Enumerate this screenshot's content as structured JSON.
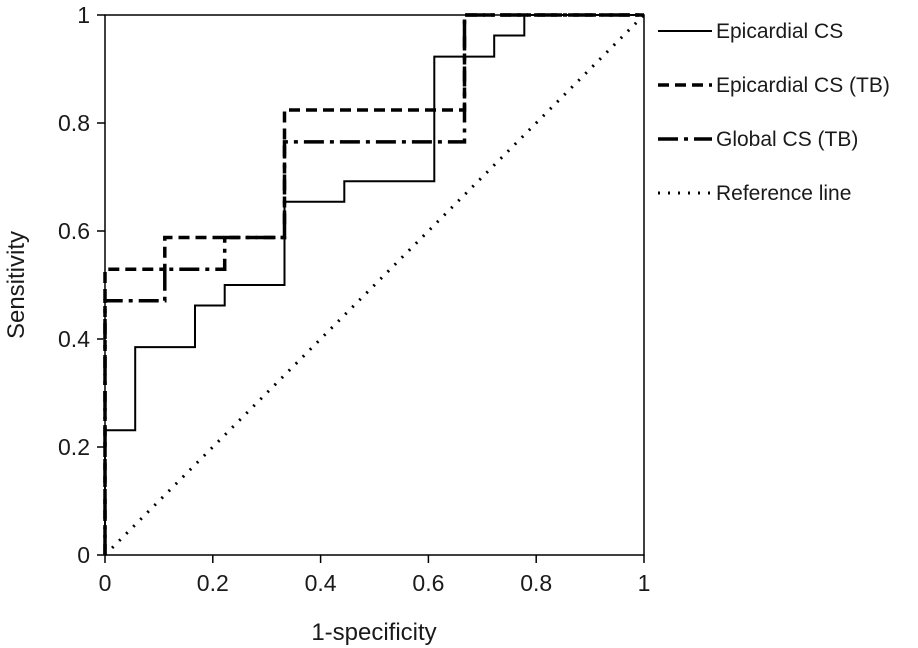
{
  "chart_data": {
    "type": "line",
    "xlabel": "1-specificity",
    "ylabel": "Sensitivity",
    "xlim": [
      0,
      1
    ],
    "ylim": [
      0,
      1
    ],
    "xticks": [
      "0",
      "0.2",
      "0.4",
      "0.6",
      "0.8",
      "1"
    ],
    "yticks": [
      "0",
      "0.2",
      "0.4",
      "0.6",
      "0.8",
      "1"
    ],
    "grid": false,
    "legend_position": "right",
    "series": [
      {
        "name": "Epicardial CS",
        "style": "solid",
        "color": "#000000",
        "x": [
          0,
          0,
          0.056,
          0.056,
          0.167,
          0.167,
          0.222,
          0.222,
          0.333,
          0.333,
          0.444,
          0.444,
          0.611,
          0.611,
          0.667,
          0.667,
          0.722,
          0.722,
          0.778,
          0.778,
          1
        ],
        "y": [
          0,
          0.231,
          0.231,
          0.385,
          0.385,
          0.462,
          0.462,
          0.5,
          0.5,
          0.654,
          0.654,
          0.692,
          0.692,
          0.923,
          0.923,
          0.923,
          0.923,
          0.962,
          0.962,
          1,
          1
        ]
      },
      {
        "name": "Epicardial CS (TB)",
        "style": "dashed",
        "color": "#000000",
        "x": [
          0,
          0,
          0.111,
          0.111,
          0.333,
          0.333,
          0.667,
          0.667,
          1
        ],
        "y": [
          0,
          0.529,
          0.529,
          0.588,
          0.588,
          0.824,
          0.824,
          1,
          1
        ]
      },
      {
        "name": "Global CS (TB)",
        "style": "dashdot",
        "color": "#000000",
        "x": [
          0,
          0,
          0.111,
          0.111,
          0.222,
          0.222,
          0.333,
          0.333,
          0.667,
          0.667,
          1
        ],
        "y": [
          0,
          0.471,
          0.471,
          0.529,
          0.529,
          0.588,
          0.588,
          0.765,
          0.765,
          1,
          1
        ]
      },
      {
        "name": "Reference line",
        "style": "dotted",
        "color": "#000000",
        "x": [
          0,
          1
        ],
        "y": [
          0,
          1
        ]
      }
    ]
  }
}
